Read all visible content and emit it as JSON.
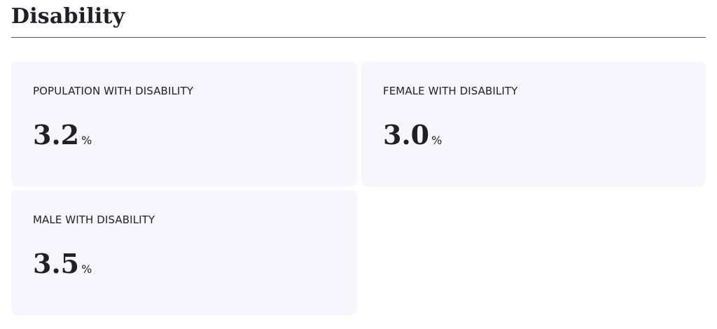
{
  "header": {
    "title": "Disability"
  },
  "cards": [
    {
      "label": "POPULATION WITH DISABILITY",
      "value": "3.2",
      "unit": "%"
    },
    {
      "label": "FEMALE WITH DISABILITY",
      "value": "3.0",
      "unit": "%"
    },
    {
      "label": "MALE WITH DISABILITY",
      "value": "3.5",
      "unit": "%"
    }
  ]
}
